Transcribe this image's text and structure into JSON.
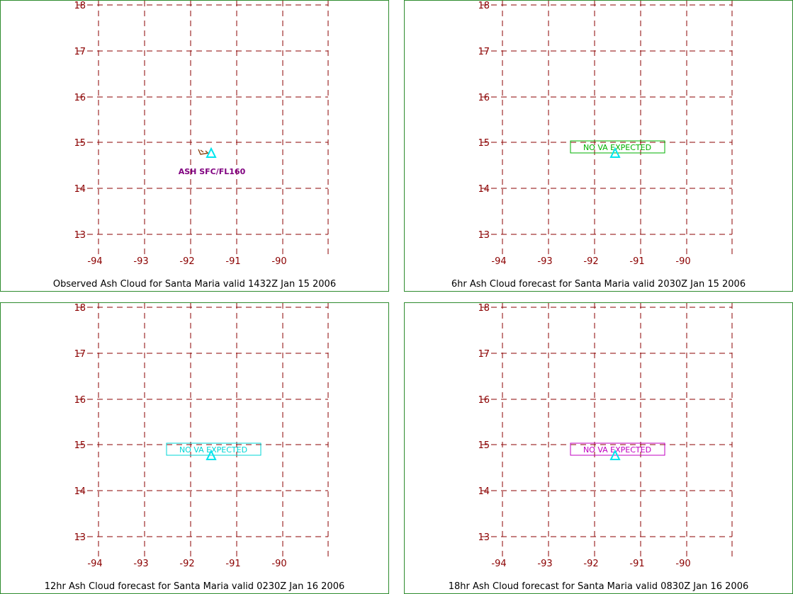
{
  "volcano": "Santa Maria",
  "colors": {
    "grid": "#8b0000",
    "panel_border": "#2e8b2e",
    "border_line": "#000000",
    "volcano_marker": "#00e5ee",
    "observed_label": "#800080",
    "ash_arrow": "#8b4513"
  },
  "map": {
    "lon_ticks": [
      "-94",
      "-93",
      "-92",
      "-91",
      "-90"
    ],
    "lat_ticks": [
      "18",
      "17",
      "16",
      "15",
      "14",
      "13"
    ],
    "grid_lines": "dashed",
    "volcano_icon": "triangle-icon"
  },
  "panels": [
    {
      "caption": "Observed Ash Cloud for Santa  Maria valid 1432Z Jan 15 2006",
      "annotation": {
        "text": "ASH SFC/FL160",
        "color": "#800080",
        "boxed": false
      },
      "has_arrow": true
    },
    {
      "caption": "6hr Ash Cloud forecast for Santa  Maria valid 2030Z Jan 15 2006",
      "annotation": {
        "text": "NO  VA  EXPECTED",
        "color": "#00b000",
        "boxed": true
      }
    },
    {
      "caption": "12hr Ash Cloud forecast for Santa  Maria valid 0230Z Jan 16 2006",
      "annotation": {
        "text": "NO  VA  EXPECTED",
        "color": "#00d5d5",
        "boxed": true
      }
    },
    {
      "caption": "18hr Ash Cloud forecast for Santa  Maria valid 0830Z Jan 16 2006",
      "annotation": {
        "text": "NO  VA  EXPECTED",
        "color": "#c000c0",
        "boxed": true
      }
    }
  ]
}
